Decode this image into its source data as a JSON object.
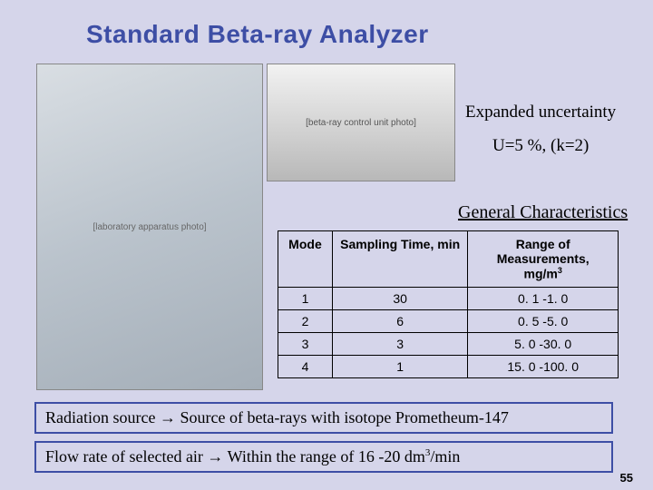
{
  "title": "Standard Beta-ray Analyzer",
  "photo_alt": "[laboratory apparatus photo]",
  "instrument_alt": "[beta-ray control unit photo]",
  "uncertainty": {
    "label": "Expanded uncertainty",
    "value": "U=5 %, (k=2)"
  },
  "characteristics_label": "General Characteristics",
  "table": {
    "headers": {
      "mode": "Mode",
      "sampling": "Sampling Time, min",
      "range_line1": "Range of Measurements,",
      "range_unit_prefix": "mg/m",
      "range_unit_sup": "3"
    },
    "rows": [
      {
        "mode": "1",
        "sampling": "30",
        "range": "0. 1 -1. 0"
      },
      {
        "mode": "2",
        "sampling": "6",
        "range": "0. 5 -5. 0"
      },
      {
        "mode": "3",
        "sampling": "3",
        "range": "5. 0 -30. 0"
      },
      {
        "mode": "4",
        "sampling": "1",
        "range": "15. 0 -100. 0"
      }
    ]
  },
  "notes": {
    "note1": "Radiation source → Source of beta-rays with isotope Prometheum-147",
    "note2_prefix": "Flow rate of selected air → Within the range of 16 -20 dm",
    "note2_sup": "3",
    "note2_suffix": "/min"
  },
  "page_number": "55",
  "colors": {
    "background": "#d5d5ea",
    "title_color": "#3d4ea5",
    "box_border": "#3d4ea5",
    "text": "#000000",
    "table_border": "#000000"
  }
}
